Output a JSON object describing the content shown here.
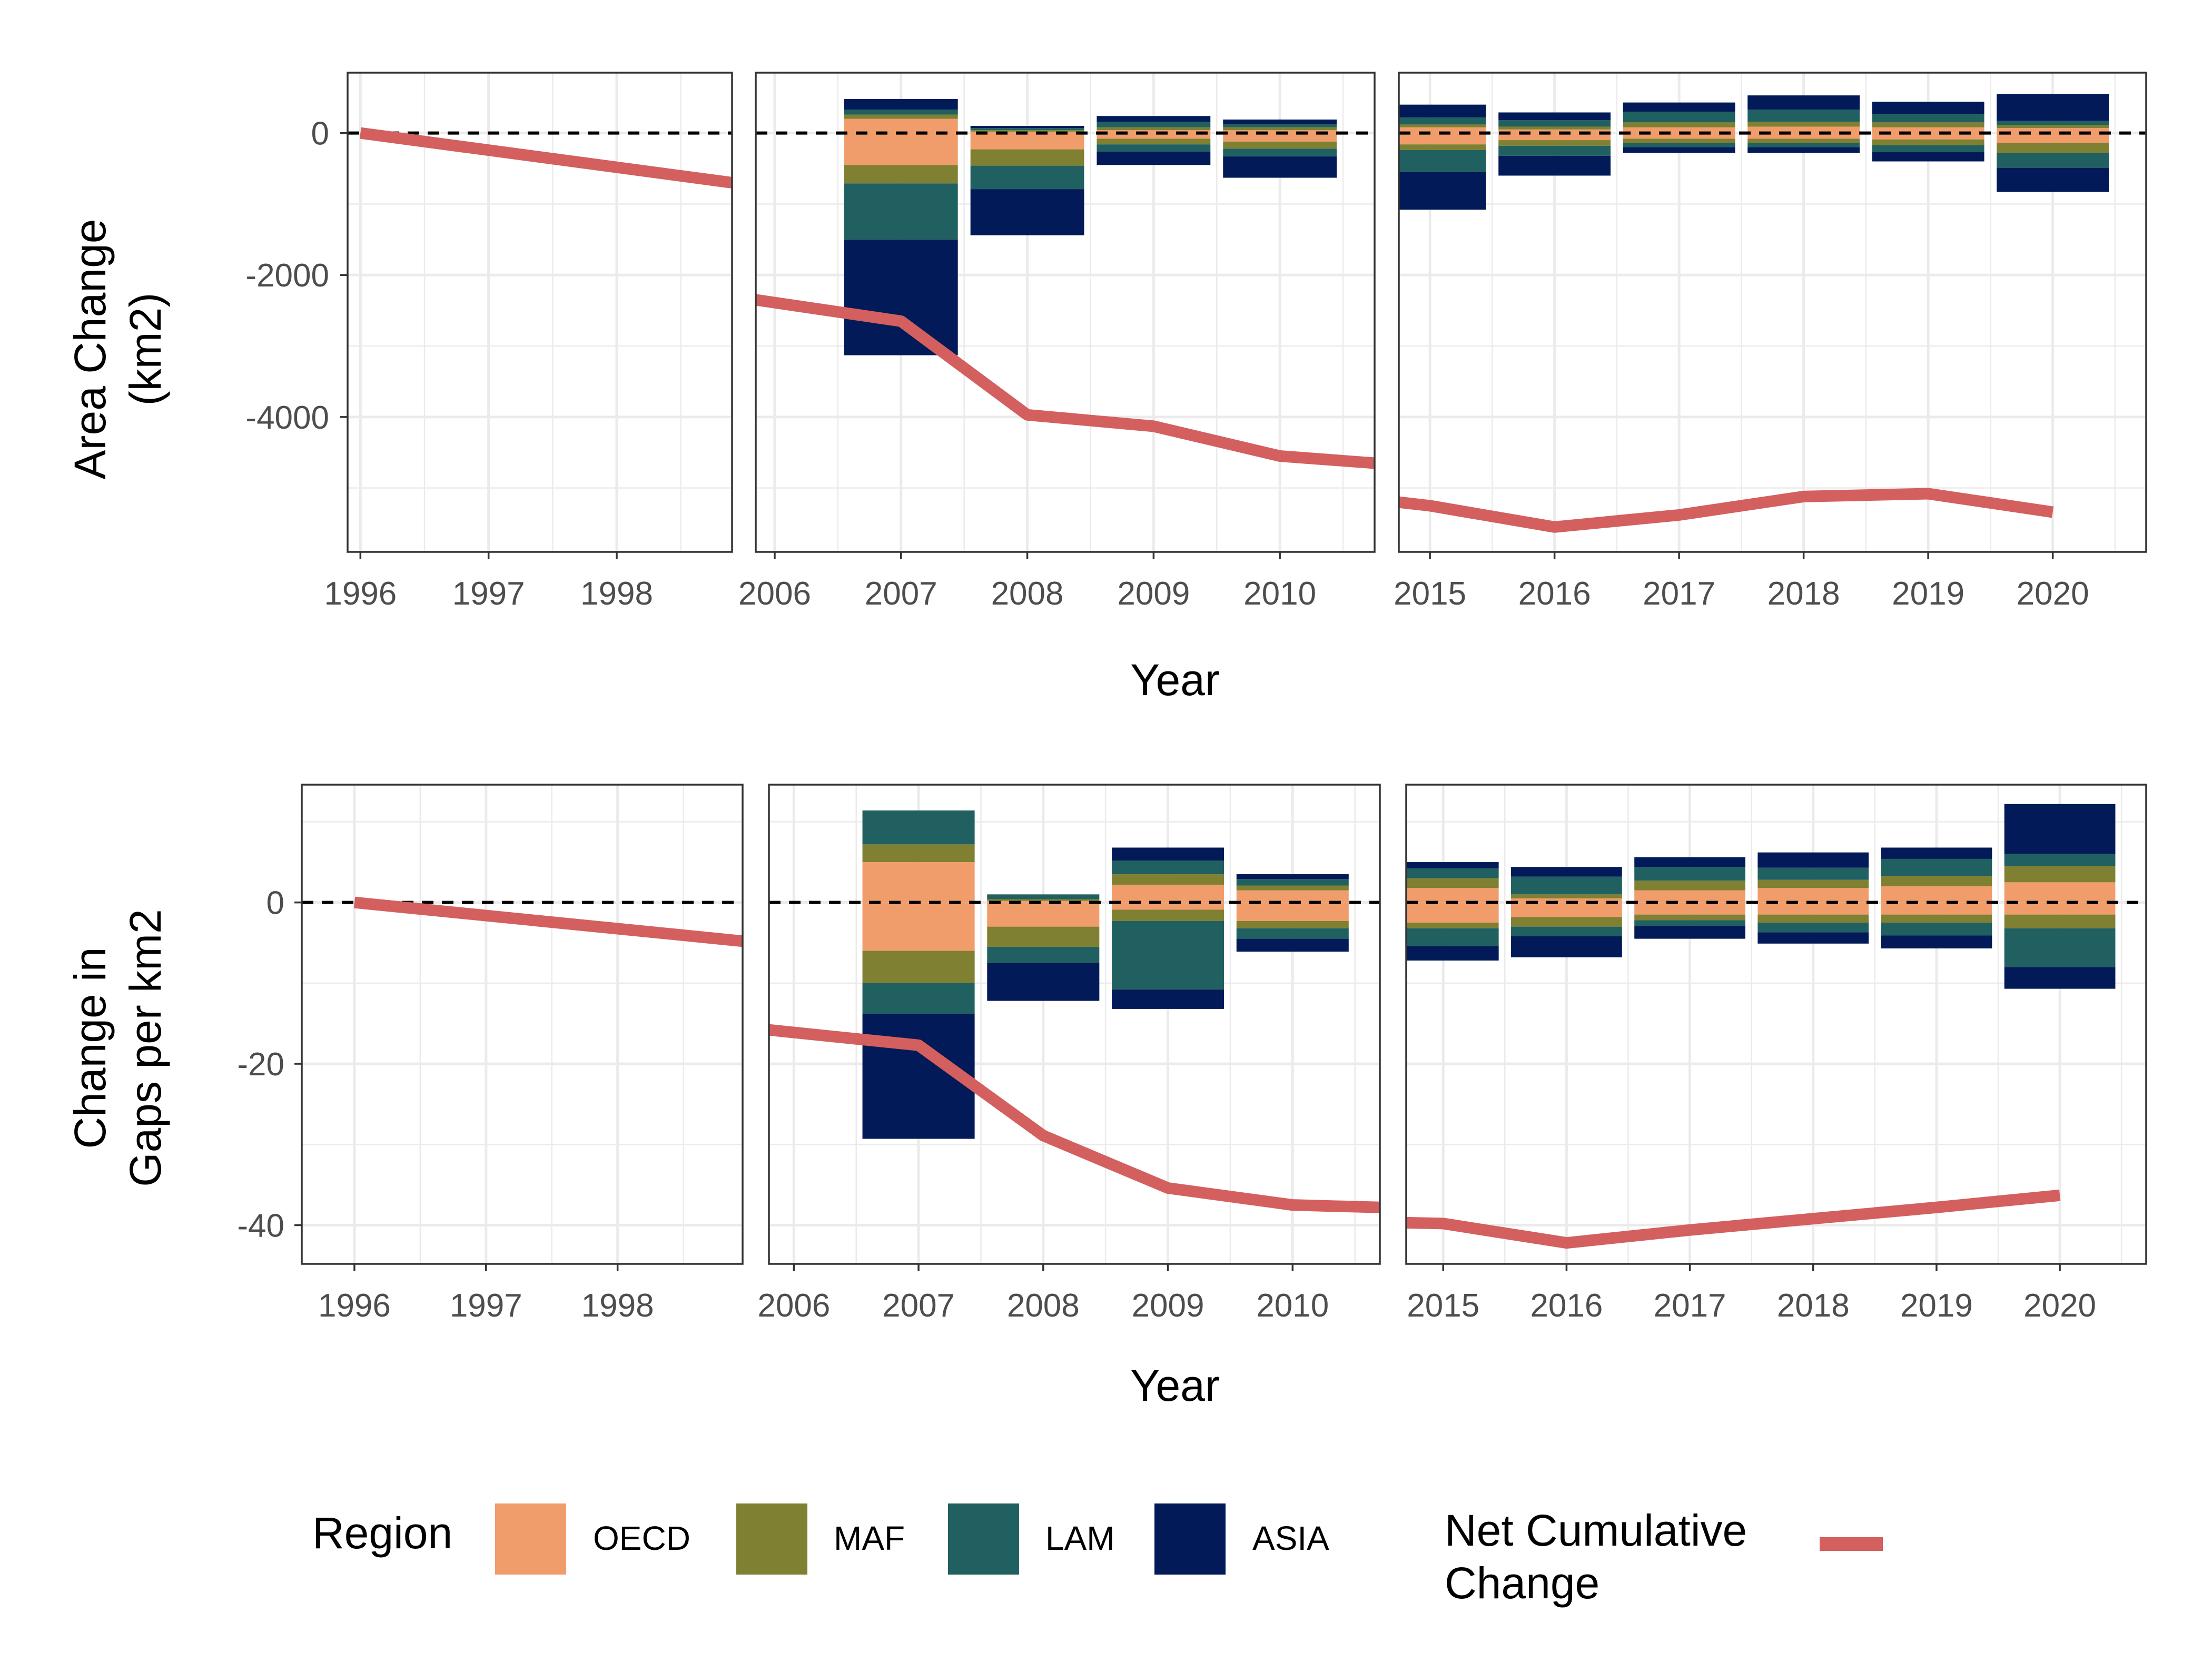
{
  "legend": {
    "region_title": "Region",
    "net_title_line1": "Net Cumulative",
    "net_title_line2": "Change",
    "regions": [
      {
        "name": "OECD",
        "color": "#F09D6B"
      },
      {
        "name": "MAF",
        "color": "#7F8031"
      },
      {
        "name": "LAM",
        "color": "#216060"
      },
      {
        "name": "ASIA",
        "color": "#021A57"
      }
    ],
    "net_color": "#D45F5F"
  },
  "chart_data": [
    {
      "type": "bar",
      "stacked": true,
      "ylabel_line1": "Area Change",
      "ylabel_line2": "(km2)",
      "xlabel": "Year",
      "ylim": [
        -5900,
        850
      ],
      "yticks": [
        0,
        -2000,
        -4000
      ],
      "reference_line": {
        "y": 0,
        "style": "dashed"
      },
      "grid": true,
      "panels": [
        {
          "xlim": [
            1995.9,
            1998.9
          ],
          "xticks": [
            "1996",
            "1997",
            "1998"
          ],
          "bars": [],
          "net_line": {
            "x": [
              1996,
              1998.9
            ],
            "y": [
              0,
              -700
            ]
          }
        },
        {
          "xlim": [
            2005.85,
            2010.75
          ],
          "xticks": [
            "2006",
            "2007",
            "2008",
            "2009",
            "2010"
          ],
          "bars": [
            {
              "year": 2007,
              "positive": {
                "OECD": 200,
                "MAF": 60,
                "LAM": 70,
                "ASIA": 150
              },
              "negative": {
                "OECD": -450,
                "MAF": -260,
                "LAM": -790,
                "ASIA": -1630
              }
            },
            {
              "year": 2008,
              "positive": {
                "OECD": 20,
                "MAF": 20,
                "LAM": 30,
                "ASIA": 30
              },
              "negative": {
                "OECD": -230,
                "MAF": -230,
                "LAM": -330,
                "ASIA": -650
              }
            },
            {
              "year": 2009,
              "positive": {
                "OECD": 40,
                "MAF": 40,
                "LAM": 80,
                "ASIA": 80
              },
              "negative": {
                "OECD": -80,
                "MAF": -80,
                "LAM": -100,
                "ASIA": -190
              }
            },
            {
              "year": 2010,
              "positive": {
                "OECD": 40,
                "MAF": 40,
                "LAM": 50,
                "ASIA": 60
              },
              "negative": {
                "OECD": -120,
                "MAF": -100,
                "LAM": -110,
                "ASIA": -300
              }
            }
          ],
          "net_line": {
            "x": [
              2005.85,
              2007,
              2008,
              2009,
              2010,
              2010.75
            ],
            "y": [
              -2350,
              -2650,
              -3970,
              -4130,
              -4550,
              -4650
            ]
          }
        },
        {
          "xlim": [
            2014.75,
            2020.75
          ],
          "xticks": [
            "2015",
            "2016",
            "2017",
            "2018",
            "2019",
            "2020"
          ],
          "bars": [
            {
              "year": 2015,
              "positive": {
                "OECD": 80,
                "MAF": 40,
                "LAM": 100,
                "ASIA": 180
              },
              "negative": {
                "OECD": -160,
                "MAF": -80,
                "LAM": -310,
                "ASIA": -530
              }
            },
            {
              "year": 2016,
              "positive": {
                "OECD": 50,
                "MAF": 40,
                "LAM": 90,
                "ASIA": 110
              },
              "negative": {
                "OECD": -100,
                "MAF": -80,
                "LAM": -140,
                "ASIA": -280
              }
            },
            {
              "year": 2017,
              "positive": {
                "OECD": 80,
                "MAF": 70,
                "LAM": 150,
                "ASIA": 130
              },
              "negative": {
                "OECD": -80,
                "MAF": -60,
                "LAM": -60,
                "ASIA": -80
              }
            },
            {
              "year": 2018,
              "positive": {
                "OECD": 90,
                "MAF": 70,
                "LAM": 170,
                "ASIA": 200
              },
              "negative": {
                "OECD": -80,
                "MAF": -60,
                "LAM": -60,
                "ASIA": -80
              }
            },
            {
              "year": 2019,
              "positive": {
                "OECD": 80,
                "MAF": 70,
                "LAM": 120,
                "ASIA": 170
              },
              "negative": {
                "OECD": -90,
                "MAF": -80,
                "LAM": -100,
                "ASIA": -130
              }
            },
            {
              "year": 2020,
              "positive": {
                "OECD": 70,
                "MAF": 40,
                "LAM": 60,
                "ASIA": 380
              },
              "negative": {
                "OECD": -140,
                "MAF": -140,
                "LAM": -210,
                "ASIA": -340
              }
            }
          ],
          "net_line": {
            "x": [
              2014.75,
              2015,
              2016,
              2017,
              2018,
              2019,
              2020
            ],
            "y": [
              -5200,
              -5250,
              -5550,
              -5380,
              -5120,
              -5080,
              -5340
            ]
          }
        }
      ]
    },
    {
      "type": "bar",
      "stacked": true,
      "ylabel_line1": "Change in",
      "ylabel_line2": "Gaps per km2",
      "xlabel": "Year",
      "ylim": [
        -44.8,
        14.6
      ],
      "yticks": [
        0,
        -20,
        -40
      ],
      "reference_line": {
        "y": 0,
        "style": "dashed"
      },
      "grid": true,
      "panels": [
        {
          "xlim": [
            1995.6,
            1998.95
          ],
          "xticks": [
            "1996",
            "1997",
            "1998"
          ],
          "bars": [],
          "net_line": {
            "x": [
              1996,
              1998.95
            ],
            "y": [
              0,
              -4.8
            ]
          }
        },
        {
          "xlim": [
            2005.8,
            2010.7
          ],
          "xticks": [
            "2006",
            "2007",
            "2008",
            "2009",
            "2010"
          ],
          "bars": [
            {
              "year": 2007,
              "positive": {
                "OECD": 5,
                "MAF": 2.2,
                "LAM": 4.2,
                "ASIA": 0
              },
              "negative": {
                "OECD": -6,
                "MAF": -4,
                "LAM": -3.8,
                "ASIA": -15.5
              }
            },
            {
              "year": 2008,
              "positive": {
                "OECD": 0.2,
                "MAF": 0.2,
                "LAM": 0.6,
                "ASIA": 0
              },
              "negative": {
                "OECD": -3,
                "MAF": -2.5,
                "LAM": -2,
                "ASIA": -4.7
              }
            },
            {
              "year": 2009,
              "positive": {
                "OECD": 2.2,
                "MAF": 1.3,
                "LAM": 1.7,
                "ASIA": 1.6
              },
              "negative": {
                "OECD": -0.9,
                "MAF": -1.4,
                "LAM": -8.5,
                "ASIA": -2.4
              }
            },
            {
              "year": 2010,
              "positive": {
                "OECD": 1.5,
                "MAF": 0.6,
                "LAM": 0.8,
                "ASIA": 0.6
              },
              "negative": {
                "OECD": -2.3,
                "MAF": -0.9,
                "LAM": -1.3,
                "ASIA": -1.6
              }
            }
          ],
          "net_line": {
            "x": [
              2005.8,
              2007,
              2008,
              2009,
              2010,
              2010.7
            ],
            "y": [
              -15.8,
              -17.7,
              -28.9,
              -35.4,
              -37.5,
              -37.8
            ]
          }
        },
        {
          "xlim": [
            2014.7,
            2020.7
          ],
          "xticks": [
            "2015",
            "2016",
            "2017",
            "2018",
            "2019",
            "2020"
          ],
          "bars": [
            {
              "year": 2015,
              "positive": {
                "OECD": 1.8,
                "MAF": 1.2,
                "LAM": 1.2,
                "ASIA": 0.8
              },
              "negative": {
                "OECD": -2.5,
                "MAF": -0.7,
                "LAM": -2.2,
                "ASIA": -1.8
              }
            },
            {
              "year": 2016,
              "positive": {
                "OECD": 0.5,
                "MAF": 0.5,
                "LAM": 2.2,
                "ASIA": 1.2
              },
              "negative": {
                "OECD": -1.8,
                "MAF": -1.2,
                "LAM": -1.2,
                "ASIA": -2.6
              }
            },
            {
              "year": 2017,
              "positive": {
                "OECD": 1.5,
                "MAF": 1.2,
                "LAM": 1.7,
                "ASIA": 1.2
              },
              "negative": {
                "OECD": -1.5,
                "MAF": -0.7,
                "LAM": -0.7,
                "ASIA": -1.6
              }
            },
            {
              "year": 2018,
              "positive": {
                "OECD": 1.8,
                "MAF": 1,
                "LAM": 1.5,
                "ASIA": 1.9
              },
              "negative": {
                "OECD": -1.5,
                "MAF": -1,
                "LAM": -1.2,
                "ASIA": -1.4
              }
            },
            {
              "year": 2019,
              "positive": {
                "OECD": 2,
                "MAF": 1.3,
                "LAM": 2.1,
                "ASIA": 1.4
              },
              "negative": {
                "OECD": -1.5,
                "MAF": -1,
                "LAM": -1.6,
                "ASIA": -1.6
              }
            },
            {
              "year": 2020,
              "positive": {
                "OECD": 2.5,
                "MAF": 2,
                "LAM": 1.5,
                "ASIA": 6.2
              },
              "negative": {
                "OECD": -1.5,
                "MAF": -1.7,
                "LAM": -4.8,
                "ASIA": -2.7
              }
            }
          ],
          "net_line": {
            "x": [
              2014.7,
              2015,
              2016,
              2017,
              2018,
              2019,
              2020
            ],
            "y": [
              -39.7,
              -39.8,
              -42.2,
              -40.6,
              -39.2,
              -37.8,
              -36.3
            ]
          }
        }
      ]
    }
  ]
}
